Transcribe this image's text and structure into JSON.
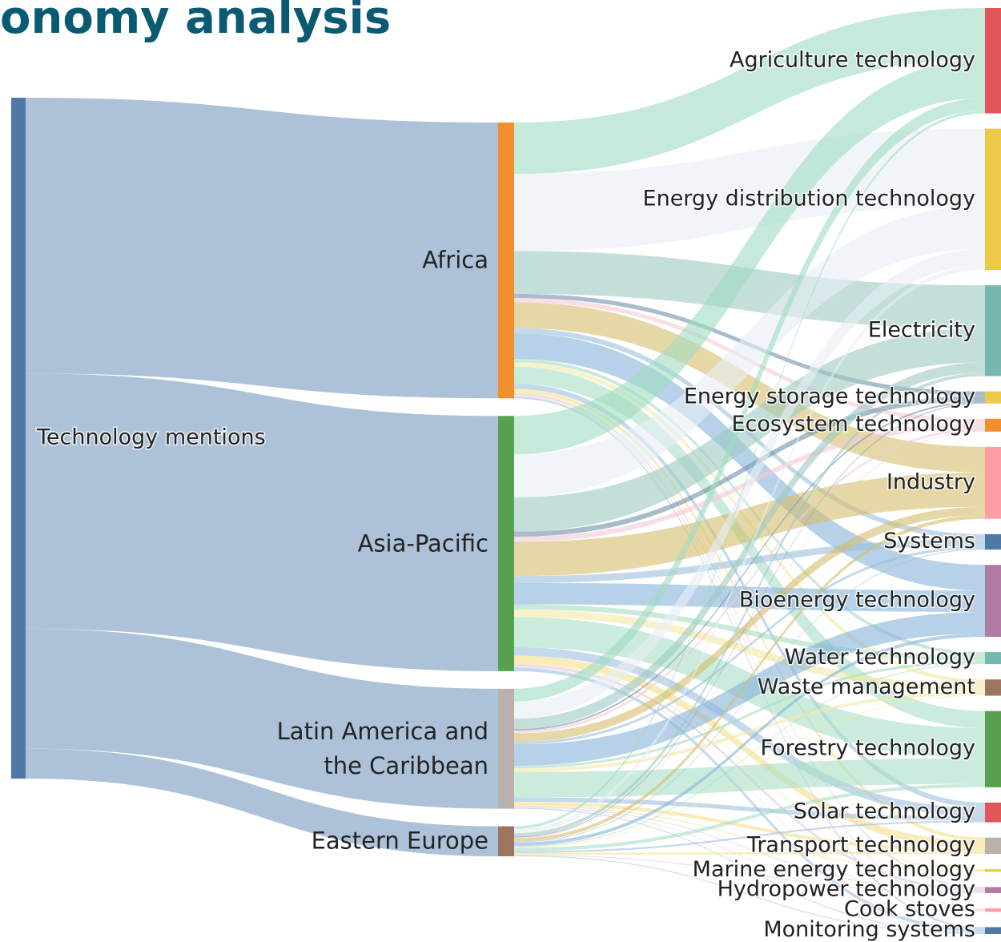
{
  "chart_data": {
    "type": "sankey",
    "title": "onomy analysis",
    "nodes": [
      {
        "name": "Technology mentions",
        "color": "#4e79a7"
      },
      {
        "name": "Africa",
        "color": "#f28e2b"
      },
      {
        "name": "Asia-Pacific",
        "color": "#59a14f"
      },
      {
        "name": "Latin America and the Caribbean",
        "color": "#bab0ac"
      },
      {
        "name": "Eastern Europe",
        "color": "#9c755f"
      },
      {
        "name": "Agriculture technology",
        "color": "#e15759",
        "flow_color": "#9fdcbf"
      },
      {
        "name": "Energy distribution technology",
        "color": "#edc948",
        "flow_color": "#e8eef5"
      },
      {
        "name": "Electricity",
        "color": "#76b7b2",
        "flow_color": "#9cc9c2"
      },
      {
        "name": "Energy storage technology",
        "color": "#edc948",
        "flow_color": "#6f8fa8"
      },
      {
        "name": "Ecosystem technology",
        "color": "#f28e2b",
        "flow_color": "#f4c9d6"
      },
      {
        "name": "Industry",
        "color": "#ff9da7",
        "flow_color": "#d6bd6a"
      },
      {
        "name": "Systems",
        "color": "#4e79a7",
        "flow_color": "#9bbfdc"
      },
      {
        "name": "Bioenergy technology",
        "color": "#b07aa1",
        "flow_color": "#86b2d8"
      },
      {
        "name": "Water technology",
        "color": "#76b7b2",
        "flow_color": "#a6dcc0"
      },
      {
        "name": "Waste management",
        "color": "#9c755f",
        "flow_color": "#f3e9a6"
      },
      {
        "name": "Forestry technology",
        "color": "#59a14f",
        "flow_color": "#a8e0c4"
      },
      {
        "name": "Solar technology",
        "color": "#e15759",
        "flow_color": "#9fc0e0"
      },
      {
        "name": "Transport technology",
        "color": "#bab0ac",
        "flow_color": "#f5e08a"
      },
      {
        "name": "Marine energy technology",
        "color": "#edc948",
        "flow_color": "#f7e27a"
      },
      {
        "name": "Hydropower technology",
        "color": "#b07aa1",
        "flow_color": "#d8c8e6"
      },
      {
        "name": "Cook stoves",
        "color": "#ff9da7",
        "flow_color": "#f4d5d5"
      },
      {
        "name": "Monitoring systems",
        "color": "#4e79a7",
        "flow_color": "#9fbfdf"
      }
    ],
    "root_flow_color": "#a9bfd6",
    "links": [
      {
        "source": 0,
        "target": 1,
        "value": 322
      },
      {
        "source": 0,
        "target": 2,
        "value": 298
      },
      {
        "source": 0,
        "target": 3,
        "value": 140
      },
      {
        "source": 0,
        "target": 4,
        "value": 35
      },
      {
        "source": 1,
        "target": 5,
        "value": 60
      },
      {
        "source": 1,
        "target": 6,
        "value": 90
      },
      {
        "source": 1,
        "target": 7,
        "value": 50
      },
      {
        "source": 1,
        "target": 8,
        "value": 5
      },
      {
        "source": 1,
        "target": 9,
        "value": 5
      },
      {
        "source": 1,
        "target": 10,
        "value": 30
      },
      {
        "source": 1,
        "target": 11,
        "value": 6
      },
      {
        "source": 1,
        "target": 12,
        "value": 30
      },
      {
        "source": 1,
        "target": 13,
        "value": 4
      },
      {
        "source": 1,
        "target": 14,
        "value": 5
      },
      {
        "source": 1,
        "target": 15,
        "value": 20
      },
      {
        "source": 1,
        "target": 16,
        "value": 6
      },
      {
        "source": 1,
        "target": 17,
        "value": 4
      },
      {
        "source": 1,
        "target": 18,
        "value": 1
      },
      {
        "source": 1,
        "target": 19,
        "value": 2
      },
      {
        "source": 1,
        "target": 20,
        "value": 2
      },
      {
        "source": 1,
        "target": 21,
        "value": 2
      },
      {
        "source": 2,
        "target": 5,
        "value": 45
      },
      {
        "source": 2,
        "target": 6,
        "value": 50
      },
      {
        "source": 2,
        "target": 7,
        "value": 40
      },
      {
        "source": 2,
        "target": 8,
        "value": 6
      },
      {
        "source": 2,
        "target": 9,
        "value": 6
      },
      {
        "source": 2,
        "target": 10,
        "value": 40
      },
      {
        "source": 2,
        "target": 11,
        "value": 8
      },
      {
        "source": 2,
        "target": 12,
        "value": 25
      },
      {
        "source": 2,
        "target": 13,
        "value": 6
      },
      {
        "source": 2,
        "target": 14,
        "value": 9
      },
      {
        "source": 2,
        "target": 15,
        "value": 35
      },
      {
        "source": 2,
        "target": 16,
        "value": 10
      },
      {
        "source": 2,
        "target": 17,
        "value": 9
      },
      {
        "source": 2,
        "target": 18,
        "value": 1
      },
      {
        "source": 2,
        "target": 19,
        "value": 3
      },
      {
        "source": 2,
        "target": 20,
        "value": 1
      },
      {
        "source": 2,
        "target": 21,
        "value": 4
      },
      {
        "source": 3,
        "target": 5,
        "value": 15
      },
      {
        "source": 3,
        "target": 6,
        "value": 20
      },
      {
        "source": 3,
        "target": 7,
        "value": 12
      },
      {
        "source": 3,
        "target": 8,
        "value": 2
      },
      {
        "source": 3,
        "target": 9,
        "value": 3
      },
      {
        "source": 3,
        "target": 10,
        "value": 10
      },
      {
        "source": 3,
        "target": 11,
        "value": 3
      },
      {
        "source": 3,
        "target": 12,
        "value": 25
      },
      {
        "source": 3,
        "target": 13,
        "value": 3
      },
      {
        "source": 3,
        "target": 14,
        "value": 4
      },
      {
        "source": 3,
        "target": 15,
        "value": 30
      },
      {
        "source": 3,
        "target": 16,
        "value": 5
      },
      {
        "source": 3,
        "target": 17,
        "value": 4
      },
      {
        "source": 3,
        "target": 18,
        "value": 1
      },
      {
        "source": 3,
        "target": 19,
        "value": 1
      },
      {
        "source": 3,
        "target": 20,
        "value": 1
      },
      {
        "source": 3,
        "target": 21,
        "value": 1
      },
      {
        "source": 4,
        "target": 5,
        "value": 3
      },
      {
        "source": 4,
        "target": 6,
        "value": 5
      },
      {
        "source": 4,
        "target": 7,
        "value": 4
      },
      {
        "source": 4,
        "target": 8,
        "value": 1
      },
      {
        "source": 4,
        "target": 9,
        "value": 1
      },
      {
        "source": 4,
        "target": 10,
        "value": 4
      },
      {
        "source": 4,
        "target": 11,
        "value": 1
      },
      {
        "source": 4,
        "target": 12,
        "value": 4
      },
      {
        "source": 4,
        "target": 13,
        "value": 1
      },
      {
        "source": 4,
        "target": 14,
        "value": 1
      },
      {
        "source": 4,
        "target": 15,
        "value": 4
      },
      {
        "source": 4,
        "target": 16,
        "value": 2
      },
      {
        "source": 4,
        "target": 17,
        "value": 2
      },
      {
        "source": 4,
        "target": 19,
        "value": 1
      },
      {
        "source": 4,
        "target": 21,
        "value": 1
      }
    ]
  }
}
